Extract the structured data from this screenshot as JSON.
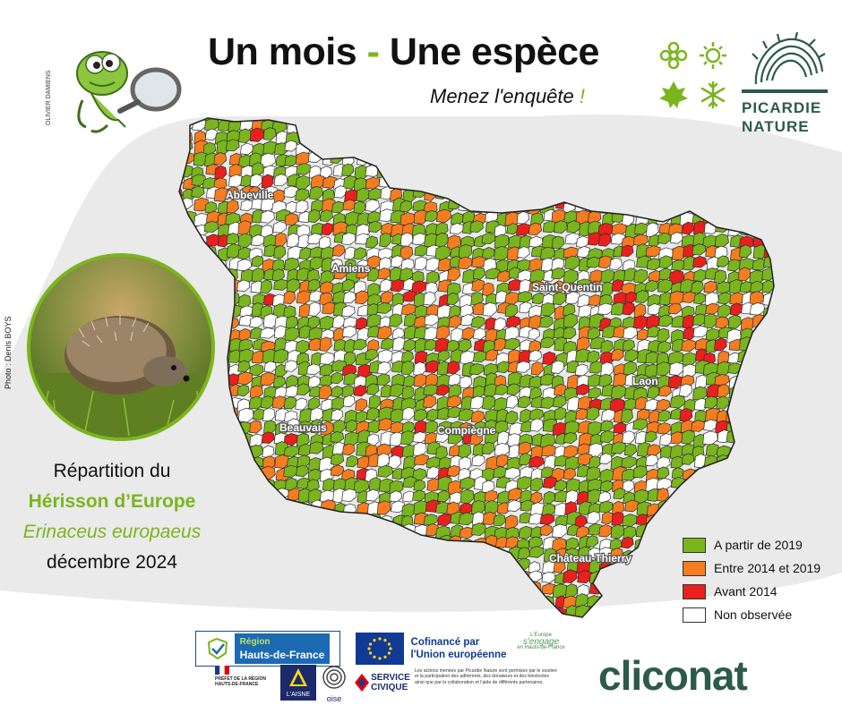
{
  "header": {
    "title_part1": "Un mois",
    "title_dash": "-",
    "title_part2": "Une espèce",
    "subtitle": "Menez l'enquête",
    "subtitle_excl": "!"
  },
  "brand": {
    "name_line1": "PICARDIE",
    "name_line2": "NATURE",
    "primary_color": "#2d5a4a",
    "accent_color": "#7ab51d"
  },
  "credits": {
    "illustration": "OLIVIER DAMIENS",
    "photo": "Photo : Denis BOYS"
  },
  "species": {
    "line1": "Répartition du",
    "common_name": "Hérisson d’Europe",
    "latin_name": "Erinaceus europaeus",
    "date": "décembre 2024"
  },
  "map": {
    "cities": [
      {
        "name": "Abbeville"
      },
      {
        "name": "Amiens"
      },
      {
        "name": "Saint-Quentin"
      },
      {
        "name": "Laon"
      },
      {
        "name": "Beauvais"
      },
      {
        "name": "Compiègne"
      },
      {
        "name": "Château-Thierry"
      }
    ]
  },
  "legend": {
    "items": [
      {
        "label": "A partir de 2019",
        "color": "#7ab51d"
      },
      {
        "label": "Entre 2014 et 2019",
        "color": "#f57c1f"
      },
      {
        "label": "Avant 2014",
        "color": "#e8201e"
      },
      {
        "label": "Non observée",
        "color": "#ffffff"
      }
    ]
  },
  "footer": {
    "region_line1": "Région",
    "region_line2": "Hauts-de-France",
    "eu_line1": "Cofinancé par",
    "eu_line2": "l'Union européenne",
    "europe_engage_small1": "L'Europe",
    "europe_engage_big": "s'engage",
    "europe_engage_small2": "en Hauts-de-France",
    "prefet_text": "PRÉFET DE LA RÉGION HAUTS-DE-FRANCE",
    "aisne": "L'AISNE",
    "oise": "oise",
    "service_civique_1": "SERVICE",
    "service_civique_2": "CIVIQUE",
    "note": "Les actions menées par Picardie Nature sont permises par le soutien et la participation des adhérents, des donateurs et des bénévoles ainsi que par la collaboration et l'aide de différents partenaires.",
    "cliconat": "cliconat"
  }
}
